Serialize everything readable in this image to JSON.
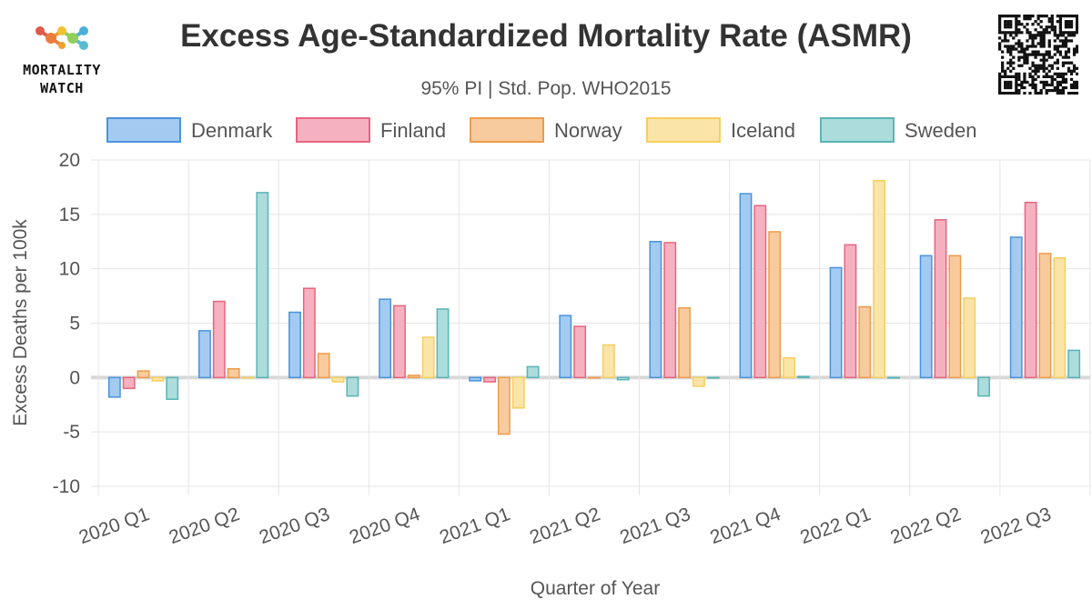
{
  "brand": {
    "line1": "MORTALITY",
    "line2": "WATCH"
  },
  "chart_data": {
    "type": "bar",
    "title": "Excess Age-Standardized Mortality Rate (ASMR)",
    "subtitle": "95% PI | Std. Pop. WHO2015",
    "xlabel": "Quarter of Year",
    "ylabel": "Excess Deaths per 100k",
    "ylim": [
      -10,
      20
    ],
    "yticks": [
      20,
      15,
      10,
      5,
      0,
      -5,
      -10
    ],
    "ytick_labels": [
      "20",
      "15",
      "10",
      "5",
      "0",
      "-5",
      "-10"
    ],
    "legend_position": "top",
    "categories": [
      "2020 Q1",
      "2020 Q2",
      "2020 Q3",
      "2020 Q4",
      "2021 Q1",
      "2021 Q2",
      "2021 Q3",
      "2021 Q4",
      "2022 Q1",
      "2022 Q2",
      "2022 Q3"
    ],
    "series": [
      {
        "name": "Denmark",
        "fill": "#a3cbf1",
        "stroke": "#4a93dc",
        "values": [
          -1.8,
          4.3,
          6.0,
          7.2,
          -0.3,
          5.7,
          12.5,
          16.9,
          10.1,
          11.2,
          12.9
        ]
      },
      {
        "name": "Finland",
        "fill": "#f6b1c0",
        "stroke": "#e4667e",
        "values": [
          -1.0,
          7.0,
          8.2,
          6.6,
          -0.4,
          4.7,
          12.4,
          15.8,
          12.2,
          14.5,
          16.1
        ]
      },
      {
        "name": "Norway",
        "fill": "#f8cb9e",
        "stroke": "#ed9c4b",
        "values": [
          0.6,
          0.8,
          2.2,
          0.2,
          -5.2,
          0.0,
          6.4,
          13.4,
          6.5,
          11.2,
          11.4
        ]
      },
      {
        "name": "Iceland",
        "fill": "#fbe4a8",
        "stroke": "#f5cf5d",
        "values": [
          -0.3,
          0.0,
          -0.4,
          3.7,
          -2.8,
          3.0,
          -0.8,
          1.8,
          18.1,
          7.3,
          11.0
        ]
      },
      {
        "name": "Sweden",
        "fill": "#acdcdc",
        "stroke": "#5ab4b4",
        "values": [
          -2.0,
          17.0,
          -1.7,
          6.3,
          1.0,
          -0.2,
          0.0,
          0.1,
          0.0,
          -1.7,
          2.5
        ]
      }
    ]
  }
}
